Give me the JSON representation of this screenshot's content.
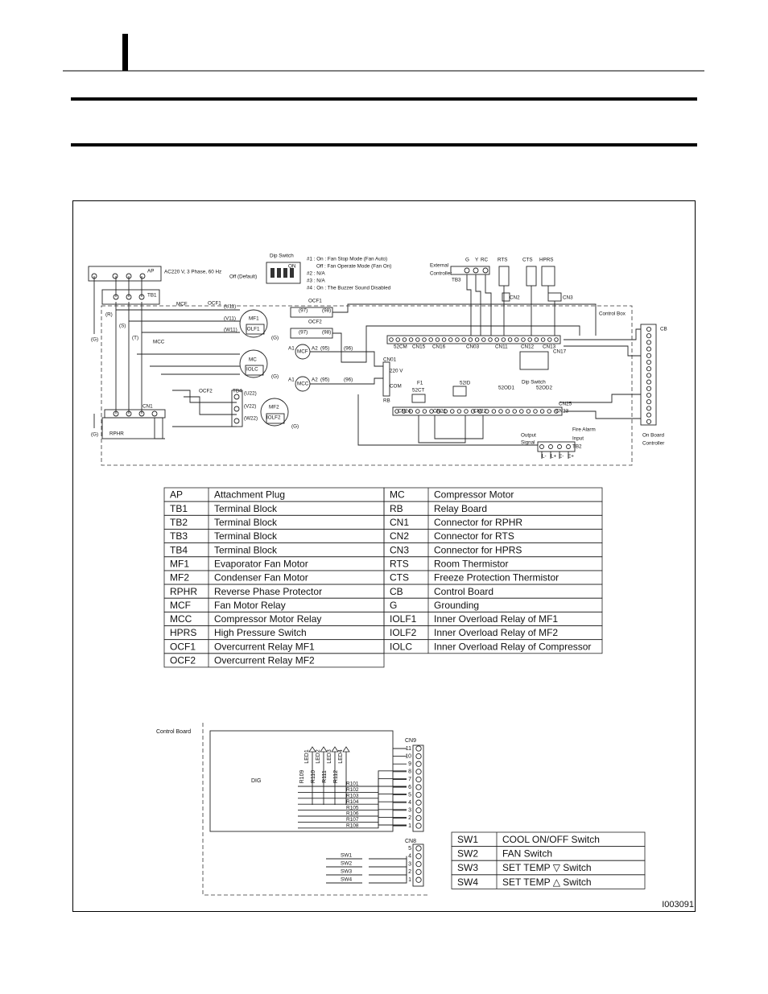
{
  "wiring_diagram": {
    "labels": [
      "Dip Switch",
      "ON",
      "Off (Default)",
      "#1 : On : Fan Stop Mode (Fan Auto)",
      "Off : Fan Operate Mode (Fan On)",
      "#2 : N/A",
      "#3 : N/A",
      "#4 : On : The Buzzer Sound Disabled",
      "AP",
      "AC220 V, 3 Phase, 60 Hz",
      "TB1",
      "External",
      "Controller",
      "TB3",
      "G",
      "Y",
      "RC",
      "RTS",
      "CTS",
      "HPRS",
      "CN2",
      "CN3",
      "Control Box",
      "CB",
      "MCF",
      "OCF1",
      "MF1",
      "IOLF1",
      "MCC",
      "MC",
      "IOLC",
      "OCF2",
      "TB4",
      "MF2",
      "IOLF2",
      "CN1",
      "RPHR",
      "CN01",
      "220 V",
      "COM",
      "RB",
      "F1",
      "52CT",
      "52ID",
      "CN24",
      "CN21",
      "CN22",
      "52OD1",
      "52OD2",
      "CN25",
      "CN23",
      "52CM",
      "CN15",
      "CN16",
      "CN03",
      "CN11",
      "CN12",
      "CN13",
      "CN17",
      "Dip Switch",
      "Output",
      "Signal",
      "Fire Alarm",
      "Input",
      "TB2",
      "On Board",
      "Controller",
      "MCF",
      "MCC",
      "OCF1",
      "OCF2",
      "A1",
      "A2",
      "A1",
      "A2",
      "L-",
      "L+",
      "E-",
      "E+",
      "(97)",
      "(98)",
      "(97)",
      "(98)",
      "(95)",
      "(96)",
      "(95)",
      "(96)",
      "(U11)",
      "(V11)",
      "(W11)",
      "(U22)",
      "(V22)",
      "(W22)",
      "(R)",
      "(S)",
      "(T)",
      "(G)",
      "(G)",
      "(G)",
      "(G)",
      "(G)"
    ]
  },
  "legend": {
    "left": [
      [
        "AP",
        "Attachment Plug"
      ],
      [
        "TB1",
        "Terminal Block"
      ],
      [
        "TB2",
        "Terminal Block"
      ],
      [
        "TB3",
        "Terminal Block"
      ],
      [
        "TB4",
        "Terminal Block"
      ],
      [
        "MF1",
        "Evaporator Fan Motor"
      ],
      [
        "MF2",
        "Condenser Fan Motor"
      ],
      [
        "RPHR",
        "Reverse Phase Protector"
      ],
      [
        "MCF",
        "Fan Motor Relay"
      ],
      [
        "MCC",
        "Compressor Motor Relay"
      ],
      [
        "HPRS",
        "High Pressure Switch"
      ],
      [
        "OCF1",
        "Overcurrent Relay MF1"
      ],
      [
        "OCF2",
        "Overcurrent Relay MF2"
      ]
    ],
    "right": [
      [
        "MC",
        "Compressor Motor"
      ],
      [
        "RB",
        "Relay Board"
      ],
      [
        "CN1",
        "Connector for RPHR"
      ],
      [
        "CN2",
        "Connector for RTS"
      ],
      [
        "CN3",
        "Connector for HPRS"
      ],
      [
        "RTS",
        "Room Thermistor"
      ],
      [
        "CTS",
        "Freeze Protection Thermistor"
      ],
      [
        "CB",
        "Control Board"
      ],
      [
        "G",
        "Grounding"
      ],
      [
        "IOLF1",
        "Inner Overload Relay of MF1"
      ],
      [
        "IOLF2",
        "Inner Overload Relay of MF2"
      ],
      [
        "IOLC",
        "Inner Overload Relay of Compressor"
      ]
    ]
  },
  "control_board": {
    "title": "Control Board",
    "chip": "DIG",
    "cn9": "CN9",
    "cn8": "CN8",
    "leds": [
      "LED1",
      "LED2",
      "LED3",
      "LED4"
    ],
    "led_resistors": [
      "R109",
      "R110",
      "R111",
      "R112"
    ],
    "resistors": [
      "R101",
      "R102",
      "R103",
      "R104",
      "R105",
      "R106",
      "R107",
      "R108"
    ],
    "switches": [
      "SW1",
      "SW2",
      "SW3",
      "SW4"
    ],
    "cn9_pins": [
      "11",
      "10",
      "9",
      "8",
      "7",
      "6",
      "5",
      "4",
      "3",
      "2",
      "1"
    ],
    "cn8_pins": [
      "5",
      "4",
      "3",
      "2",
      "1"
    ]
  },
  "switches": [
    [
      "SW1",
      "COOL ON/OFF Switch"
    ],
    [
      "SW2",
      "FAN Switch"
    ],
    [
      "SW3",
      "SET TEMP ▽ Switch"
    ],
    [
      "SW4",
      "SET TEMP △ Switch"
    ]
  ],
  "figure_id": "I003091"
}
